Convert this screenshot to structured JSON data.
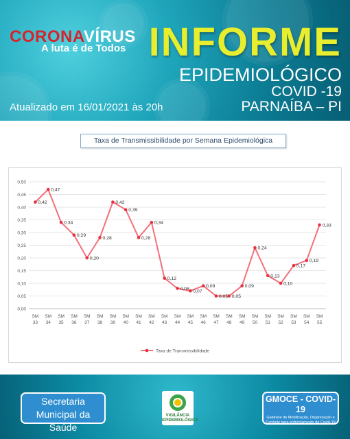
{
  "header": {
    "brand_part1": "CORONA",
    "brand_part2": "VÍRUS",
    "brand_slogan": "A luta é de Todos",
    "title": "INFORME",
    "subtitle": "EPIDEMIOLÓGICO",
    "disease": "COVID -19",
    "location": "PARNAÍBA – PI",
    "updated": "Atualizado em 16/01/2021 às 20h"
  },
  "colors": {
    "title_yellow": "#e8ee2e",
    "brand_red": "#d8232a",
    "series_line": "#f2707a",
    "series_marker": "#e8303e",
    "box_blue": "#2f8ed0"
  },
  "chart_data": {
    "type": "line",
    "title": "Taxa de Transmissibilidade por Semana Epidemiológica",
    "categories": [
      "SM 33",
      "SM 34",
      "SM 35",
      "SM 36",
      "SM 37",
      "SM 38",
      "SM 39",
      "SM 40",
      "SM 41",
      "SM 42",
      "SM 43",
      "SM 44",
      "SM 45",
      "SM 46",
      "SM 47",
      "SM 48",
      "SM 49",
      "SM 50",
      "SM 51",
      "SM 52",
      "SM 53",
      "SM 54",
      "SM 55"
    ],
    "series": [
      {
        "name": "Taxa de Transmissibilidade",
        "values": [
          0.42,
          0.47,
          0.34,
          0.29,
          0.2,
          0.28,
          0.42,
          0.39,
          0.28,
          0.34,
          0.12,
          0.08,
          0.07,
          0.09,
          0.05,
          0.05,
          0.09,
          0.24,
          0.13,
          0.1,
          0.17,
          0.19,
          0.33
        ],
        "labels": [
          "0,42",
          "0,47",
          "0,34",
          "0,29",
          "0,20",
          "0,28",
          "0,42",
          "0,39",
          "0,28",
          "0,34",
          "0,12",
          "0,08",
          "0,07",
          "0,09",
          "0,05",
          "0,05",
          "0,09",
          "0,24",
          "0,13",
          "0,10",
          "0,17",
          "0,19",
          "0,33"
        ]
      }
    ],
    "yticks": [
      0,
      0.05,
      0.1,
      0.15,
      0.2,
      0.25,
      0.3,
      0.35,
      0.4,
      0.45,
      0.5
    ],
    "ytick_labels": [
      "0,00",
      "0,05",
      "0,10",
      "0,15",
      "0,20",
      "0,25",
      "0,30",
      "0,35",
      "0,40",
      "0,45",
      "0,50"
    ],
    "ylim": [
      0,
      0.5
    ],
    "grid": true,
    "legend_position": "bottom"
  },
  "footer": {
    "secretaria": "Secretaria Municipal da Saúde",
    "logo_text": "VIGILÂNCIA EPIDEMIOLÓGICA",
    "gmoce_title": "GMOCE - COVID-19",
    "gmoce_sub": "Gabinete de Mobilização, Organização e Controle para enfrentamento da Covid-19"
  }
}
